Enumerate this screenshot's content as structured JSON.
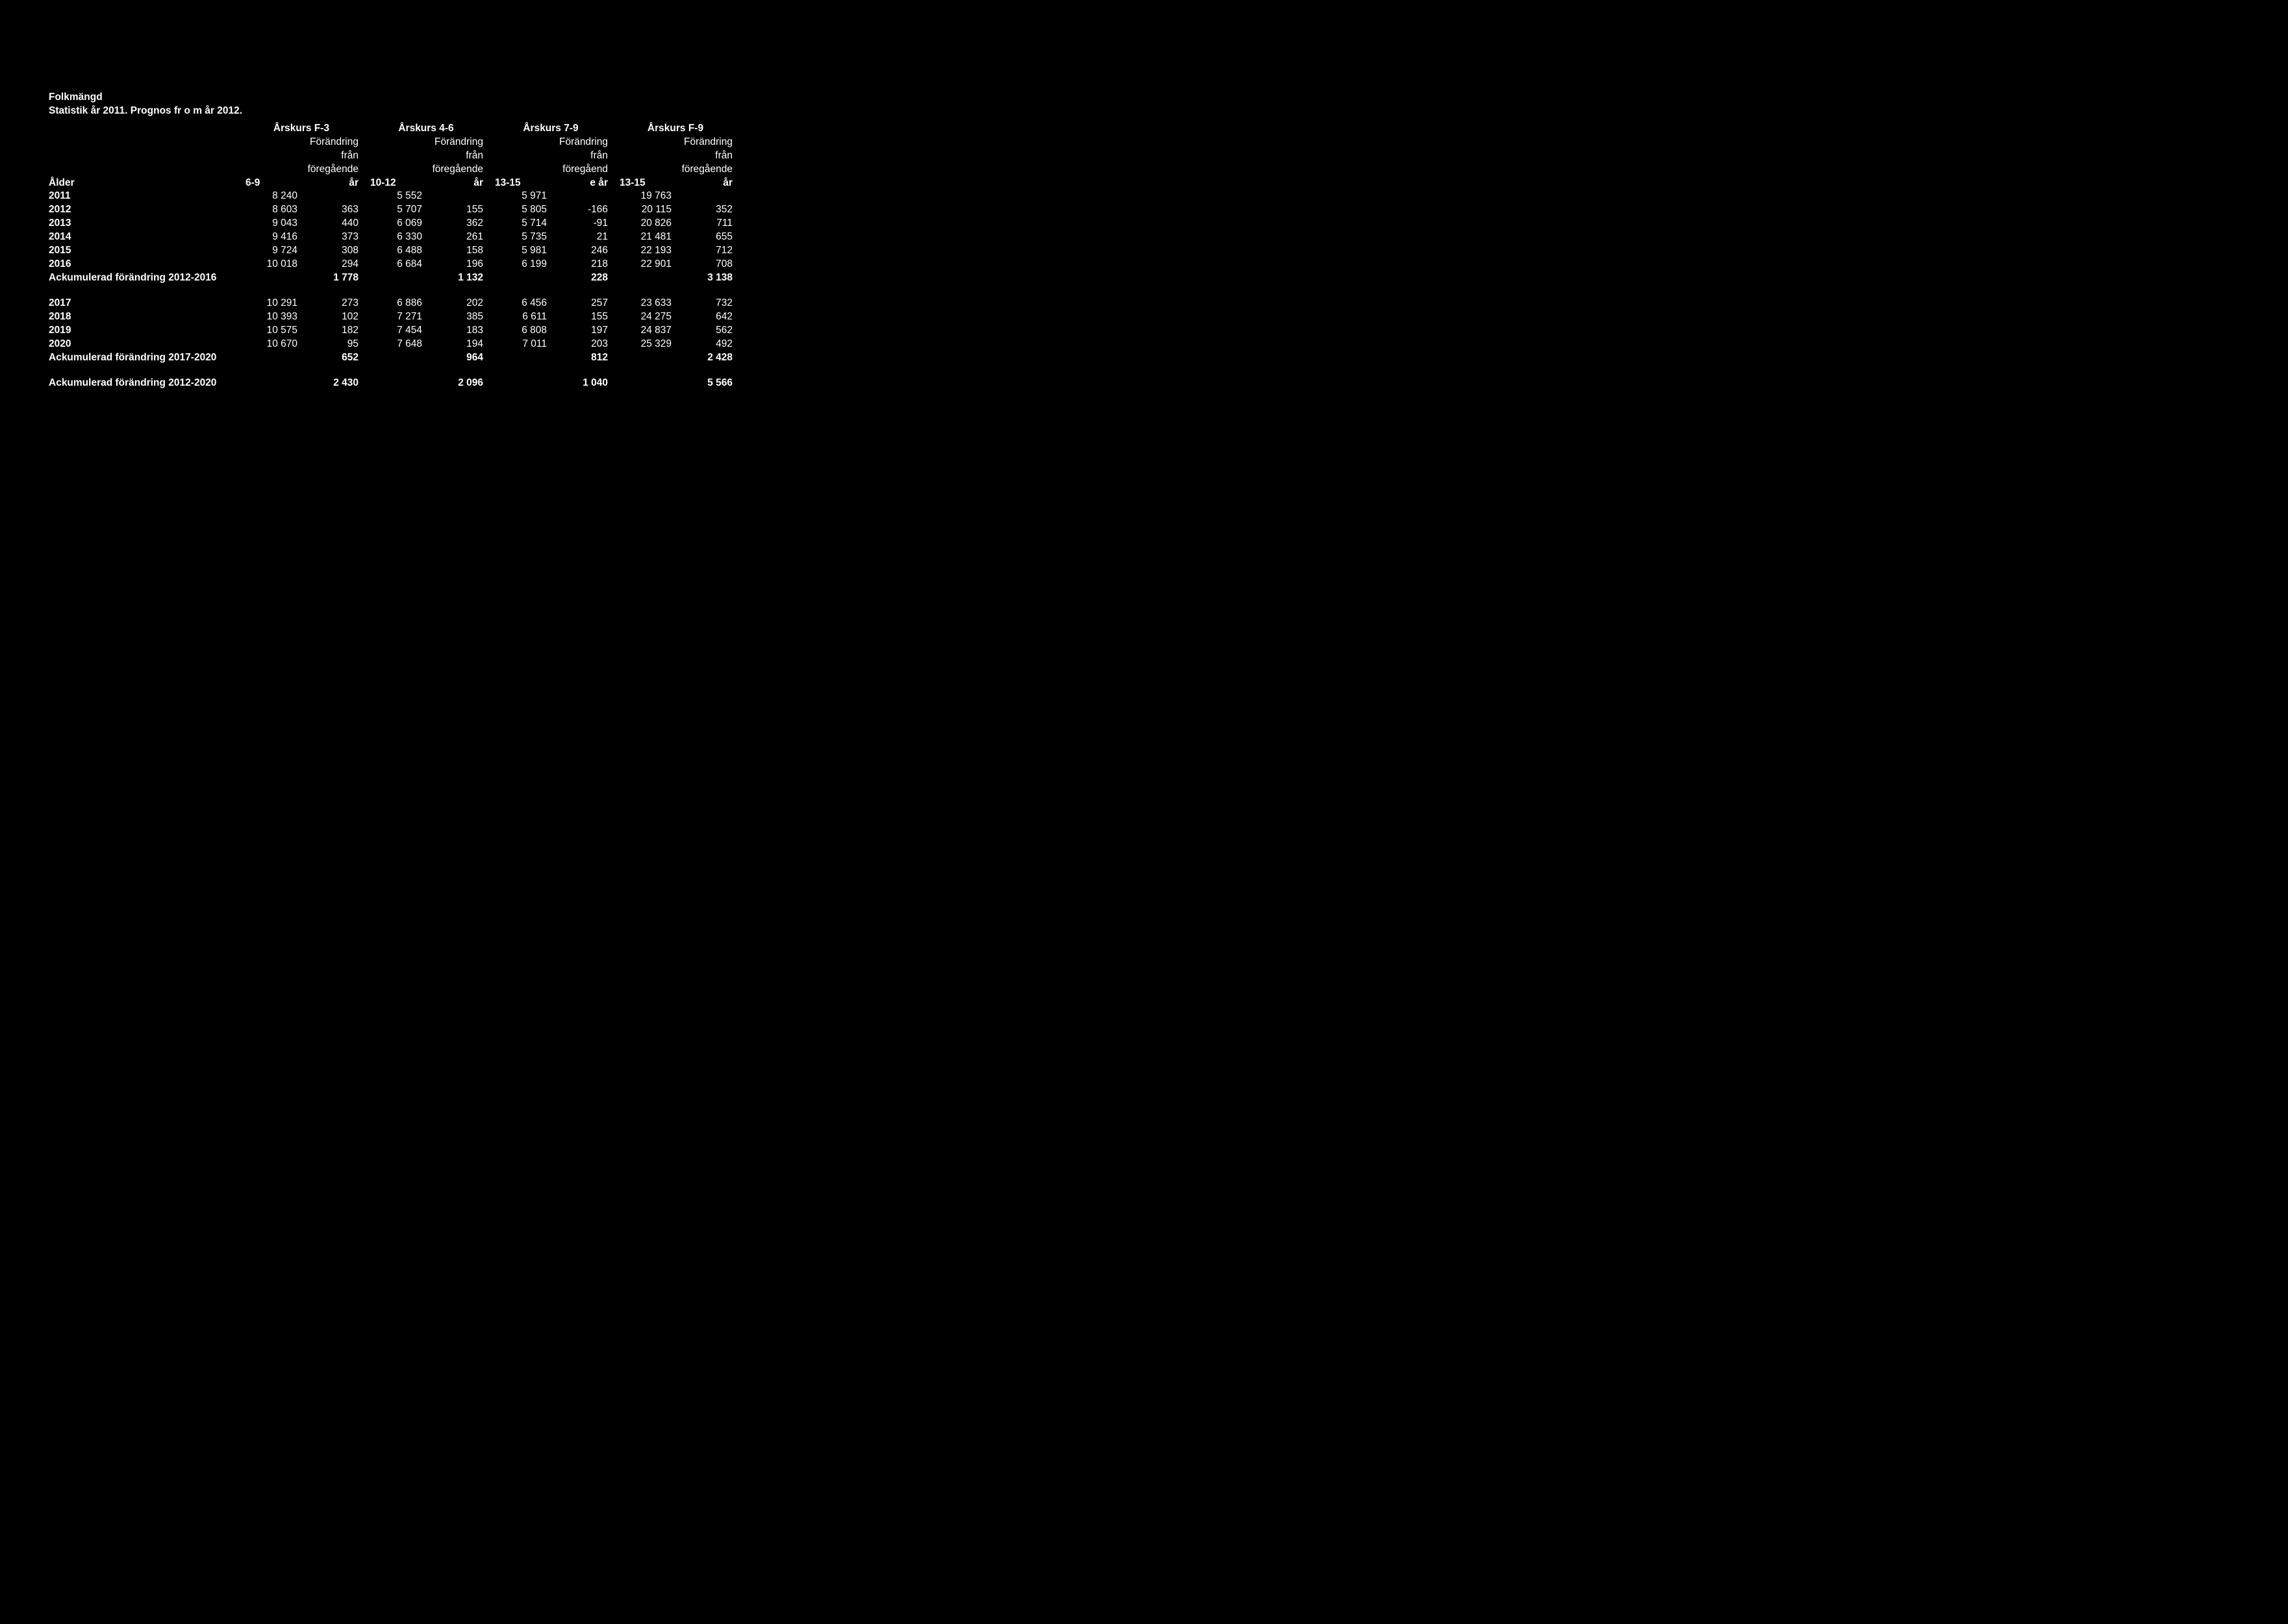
{
  "background_color": "#000000",
  "text_color": "#ffffff",
  "font_family": "Arial",
  "title_line1": "Folkmängd",
  "title_line2": "Statistik år 2011. Prognos fr o m år 2012.",
  "groups": [
    {
      "name": "Årskurs F-3",
      "age": "6-9",
      "change_header": "Förändring från föregående år"
    },
    {
      "name": "Årskurs 4-6",
      "age": "10-12",
      "change_header": "Förändring från föregående år"
    },
    {
      "name": "Årskurs 7-9",
      "age": "13-15",
      "change_header": "Förändring från föregåend e år"
    },
    {
      "name": "Årskurs F-9",
      "age": "13-15",
      "change_header": "Förändring från föregående år"
    }
  ],
  "row_header_label": "Ålder",
  "rows_block1": [
    {
      "label": "2011",
      "v": [
        "8 240",
        "",
        "5 552",
        "",
        "5 971",
        "",
        "19 763",
        ""
      ]
    },
    {
      "label": "2012",
      "v": [
        "8 603",
        "363",
        "5 707",
        "155",
        "5 805",
        "-166",
        "20 115",
        "352"
      ]
    },
    {
      "label": "2013",
      "v": [
        "9 043",
        "440",
        "6 069",
        "362",
        "5 714",
        "-91",
        "20 826",
        "711"
      ]
    },
    {
      "label": "2014",
      "v": [
        "9 416",
        "373",
        "6 330",
        "261",
        "5 735",
        "21",
        "21 481",
        "655"
      ]
    },
    {
      "label": "2015",
      "v": [
        "9 724",
        "308",
        "6 488",
        "158",
        "5 981",
        "246",
        "22 193",
        "712"
      ]
    },
    {
      "label": "2016",
      "v": [
        "10 018",
        "294",
        "6 684",
        "196",
        "6 199",
        "218",
        "22 901",
        "708"
      ]
    }
  ],
  "sum1": {
    "label": "Ackumulerad förändring 2012-2016",
    "v": [
      "",
      "1 778",
      "",
      "1 132",
      "",
      "228",
      "",
      "3 138"
    ]
  },
  "rows_block2": [
    {
      "label": "2017",
      "v": [
        "10 291",
        "273",
        "6 886",
        "202",
        "6 456",
        "257",
        "23 633",
        "732"
      ]
    },
    {
      "label": "2018",
      "v": [
        "10 393",
        "102",
        "7 271",
        "385",
        "6 611",
        "155",
        "24 275",
        "642"
      ]
    },
    {
      "label": "2019",
      "v": [
        "10 575",
        "182",
        "7 454",
        "183",
        "6 808",
        "197",
        "24 837",
        "562"
      ]
    },
    {
      "label": "2020",
      "v": [
        "10 670",
        "95",
        "7 648",
        "194",
        "7 011",
        "203",
        "25 329",
        "492"
      ]
    }
  ],
  "sum2": {
    "label": "Ackumulerad förändring 2017-2020",
    "v": [
      "",
      "652",
      "",
      "964",
      "",
      "812",
      "",
      "2 428"
    ]
  },
  "sum3": {
    "label": "Ackumulerad förändring 2012-2020",
    "v": [
      "",
      "2 430",
      "",
      "2 096",
      "",
      "1 040",
      "",
      "5 566"
    ]
  }
}
